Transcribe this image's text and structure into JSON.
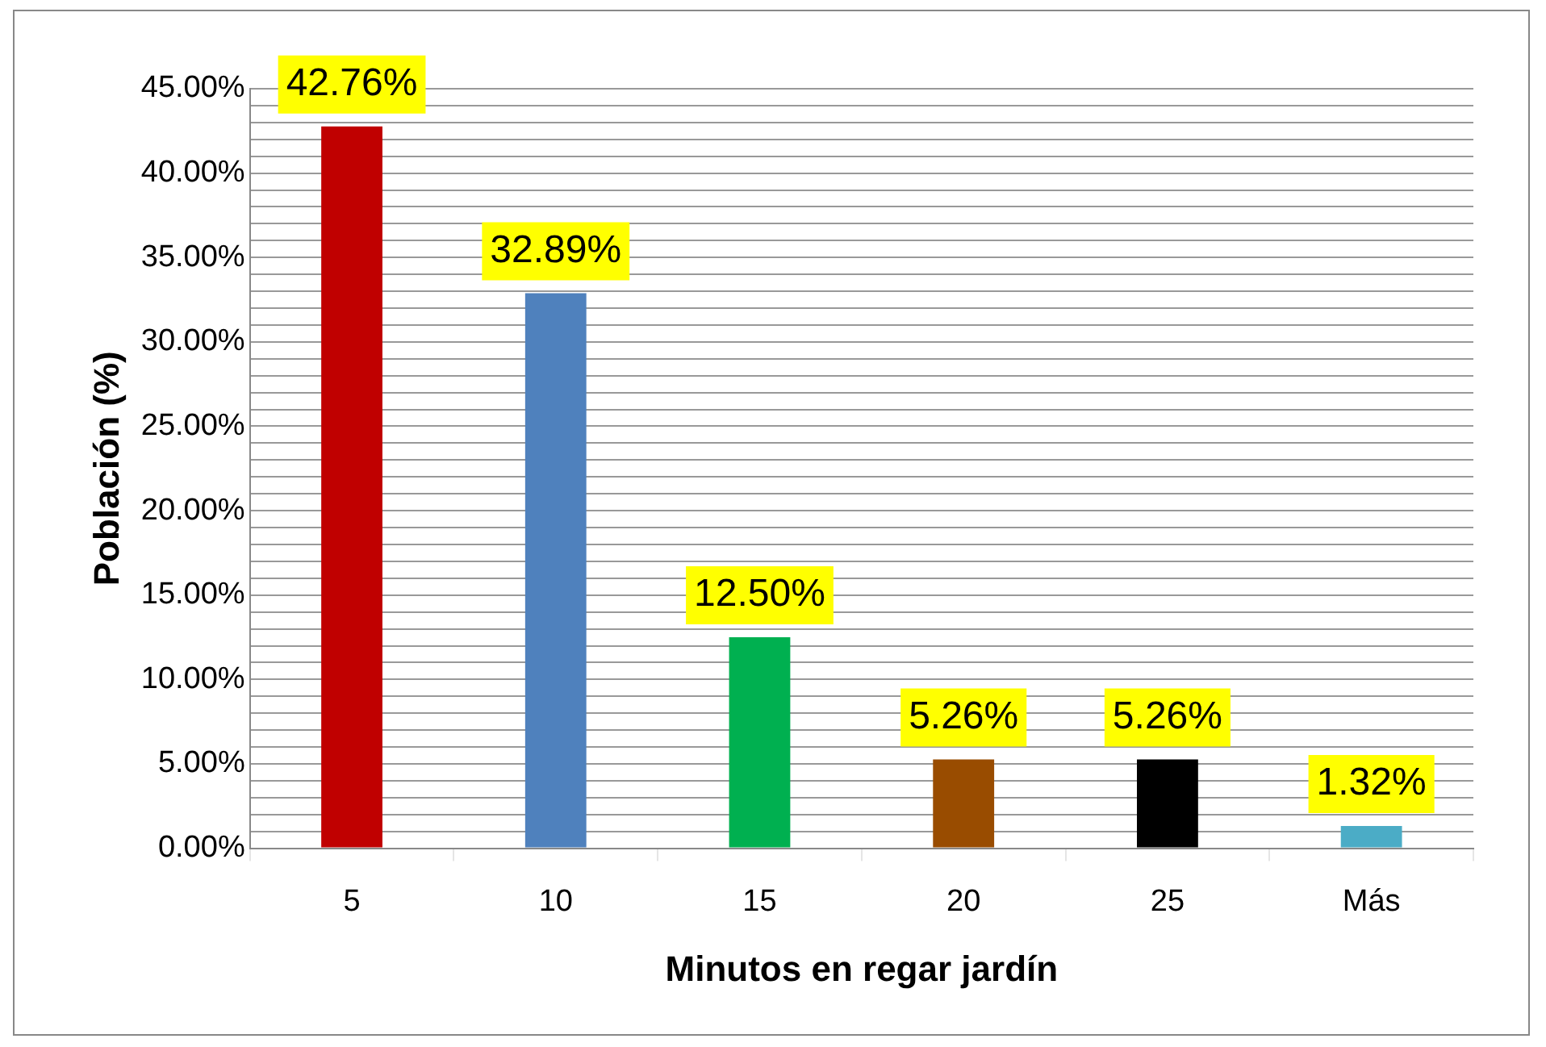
{
  "chart_data": {
    "type": "bar",
    "xlabel": "Minutos en regar jardín",
    "ylabel": "Población (%)",
    "categories": [
      "5",
      "10",
      "15",
      "20",
      "25",
      "Más"
    ],
    "values": [
      42.76,
      32.89,
      12.5,
      5.26,
      5.26,
      1.32
    ],
    "colors": [
      "#c00000",
      "#4f81bd",
      "#00b050",
      "#994c00",
      "#000000",
      "#4bacc6"
    ],
    "value_labels": [
      "42.76%",
      "32.89%",
      "12.50%",
      "5.26%",
      "5.26%",
      "1.32%"
    ],
    "ylim": [
      0,
      45
    ],
    "yticks": [
      {
        "value": 0,
        "label": "0.00%"
      },
      {
        "value": 1,
        "label": null
      },
      {
        "value": 2,
        "label": null
      },
      {
        "value": 3,
        "label": null
      },
      {
        "value": 4,
        "label": null
      },
      {
        "value": 5,
        "label": "5.00%"
      },
      {
        "value": 6,
        "label": null
      },
      {
        "value": 7,
        "label": null
      },
      {
        "value": 8,
        "label": null
      },
      {
        "value": 9,
        "label": null
      },
      {
        "value": 10,
        "label": "10.00%"
      },
      {
        "value": 11,
        "label": null
      },
      {
        "value": 12,
        "label": null
      },
      {
        "value": 13,
        "label": null
      },
      {
        "value": 14,
        "label": null
      },
      {
        "value": 15,
        "label": "15.00%"
      },
      {
        "value": 16,
        "label": null
      },
      {
        "value": 17,
        "label": null
      },
      {
        "value": 18,
        "label": null
      },
      {
        "value": 19,
        "label": null
      },
      {
        "value": 20,
        "label": "20.00%"
      },
      {
        "value": 21,
        "label": null
      },
      {
        "value": 22,
        "label": null
      },
      {
        "value": 23,
        "label": null
      },
      {
        "value": 24,
        "label": null
      },
      {
        "value": 25,
        "label": "25.00%"
      },
      {
        "value": 26,
        "label": null
      },
      {
        "value": 27,
        "label": null
      },
      {
        "value": 28,
        "label": null
      },
      {
        "value": 29,
        "label": null
      },
      {
        "value": 30,
        "label": "30.00%"
      },
      {
        "value": 31,
        "label": null
      },
      {
        "value": 32,
        "label": null
      },
      {
        "value": 33,
        "label": null
      },
      {
        "value": 34,
        "label": null
      },
      {
        "value": 35,
        "label": "35.00%"
      },
      {
        "value": 36,
        "label": null
      },
      {
        "value": 37,
        "label": null
      },
      {
        "value": 38,
        "label": null
      },
      {
        "value": 39,
        "label": null
      },
      {
        "value": 40,
        "label": "40.00%"
      },
      {
        "value": 41,
        "label": null
      },
      {
        "value": 42,
        "label": null
      },
      {
        "value": 43,
        "label": null
      },
      {
        "value": 44,
        "label": null
      },
      {
        "value": 45,
        "label": "45.00%"
      }
    ],
    "grid": true,
    "legend": false
  }
}
